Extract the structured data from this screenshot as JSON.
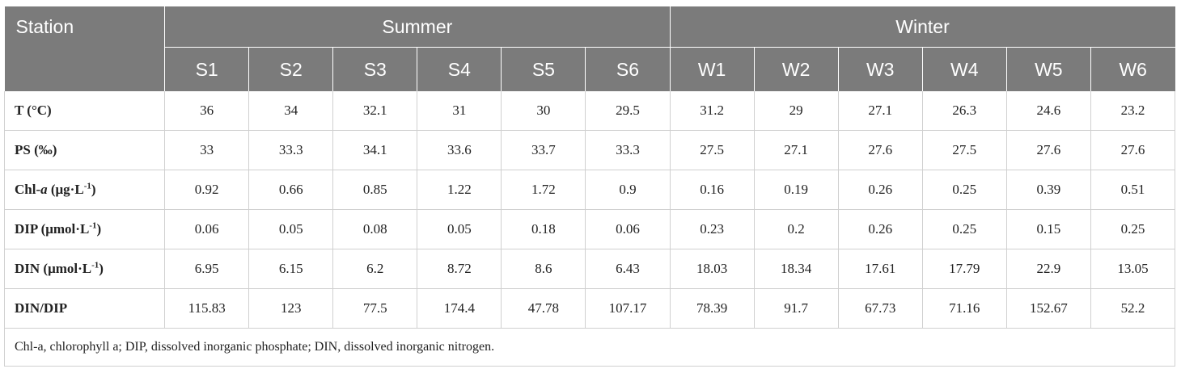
{
  "header": {
    "station": "Station",
    "summer": "Summer",
    "winter": "Winter",
    "stations": [
      "S1",
      "S2",
      "S3",
      "S4",
      "S5",
      "S6",
      "W1",
      "W2",
      "W3",
      "W4",
      "W5",
      "W6"
    ]
  },
  "rows": [
    {
      "label_main": "T (°C)",
      "label_italic": "",
      "label_unit": "",
      "label_sup": "",
      "label_end": "",
      "values": [
        "36",
        "34",
        "32.1",
        "31",
        "30",
        "29.5",
        "31.2",
        "29",
        "27.1",
        "26.3",
        "24.6",
        "23.2"
      ]
    },
    {
      "label_main": "PS (‰)",
      "label_italic": "",
      "label_unit": "",
      "label_sup": "",
      "label_end": "",
      "values": [
        "33",
        "33.3",
        "34.1",
        "33.6",
        "33.7",
        "33.3",
        "27.5",
        "27.1",
        "27.6",
        "27.5",
        "27.6",
        "27.6"
      ]
    },
    {
      "label_main": "Chl-",
      "label_italic": "a",
      "label_unit": " (μg·L",
      "label_sup": "-1",
      "label_end": ")",
      "values": [
        "0.92",
        "0.66",
        "0.85",
        "1.22",
        "1.72",
        "0.9",
        "0.16",
        "0.19",
        "0.26",
        "0.25",
        "0.39",
        "0.51"
      ]
    },
    {
      "label_main": "DIP",
      "label_italic": "",
      "label_unit": " (μmol·L",
      "label_sup": "-1",
      "label_end": ")",
      "values": [
        "0.06",
        "0.05",
        "0.08",
        "0.05",
        "0.18",
        "0.06",
        "0.23",
        "0.2",
        "0.26",
        "0.25",
        "0.15",
        "0.25"
      ]
    },
    {
      "label_main": "DIN",
      "label_italic": "",
      "label_unit": " (μmol·L",
      "label_sup": "-1",
      "label_end": ")",
      "values": [
        "6.95",
        "6.15",
        "6.2",
        "8.72",
        "8.6",
        "6.43",
        "18.03",
        "18.34",
        "17.61",
        "17.79",
        "22.9",
        "13.05"
      ]
    },
    {
      "label_main": "DIN/DIP",
      "label_italic": "",
      "label_unit": "",
      "label_sup": "",
      "label_end": "",
      "values": [
        "115.83",
        "123",
        "77.5",
        "174.4",
        "47.78",
        "107.17",
        "78.39",
        "91.7",
        "67.73",
        "71.16",
        "152.67",
        "52.2"
      ]
    }
  ],
  "footnote": "Chl-a, chlorophyll a; DIP, dissolved inorganic phosphate; DIN, dissolved inorganic nitrogen.",
  "colors": {
    "header_bg": "#7b7b7b",
    "header_text": "#ffffff",
    "grid": "#d0d0d0"
  }
}
